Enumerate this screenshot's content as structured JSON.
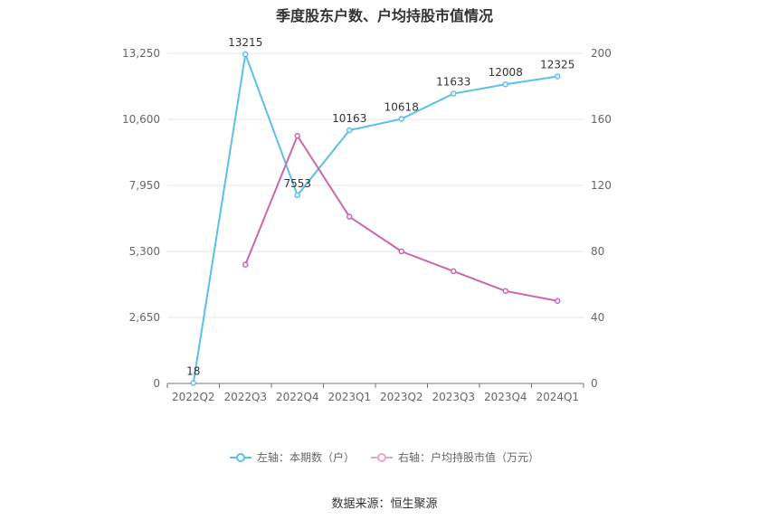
{
  "chart_data": {
    "type": "line",
    "title": "季度股东户数、户均持股市值情况",
    "categories": [
      "2022Q2",
      "2022Q3",
      "2022Q4",
      "2023Q1",
      "2023Q2",
      "2023Q3",
      "2023Q4",
      "2024Q1"
    ],
    "series": [
      {
        "name": "左轴：本期数（户）",
        "axis": "left",
        "color": "#5bc0eb",
        "values": [
          18,
          13215,
          7553,
          10163,
          10618,
          11633,
          12008,
          12325
        ],
        "labels": [
          "18",
          "13215",
          "7553",
          "10163",
          "10618",
          "11633",
          "12008",
          "12325"
        ]
      },
      {
        "name": "右轴：户均持股市值（万元）",
        "axis": "right",
        "color": "#cc66aa",
        "values": [
          null,
          72,
          150,
          101,
          80,
          68,
          56,
          50
        ]
      }
    ],
    "left_axis": {
      "ticks": [
        "0",
        "2,650",
        "5,300",
        "7,950",
        "10,600",
        "13,250"
      ],
      "ylim": [
        0,
        13250
      ]
    },
    "right_axis": {
      "ticks": [
        "0",
        "40",
        "80",
        "120",
        "160",
        "200"
      ],
      "ylim": [
        0,
        200
      ]
    },
    "grid": true,
    "legend_position": "bottom"
  },
  "source": "数据来源：恒生聚源"
}
